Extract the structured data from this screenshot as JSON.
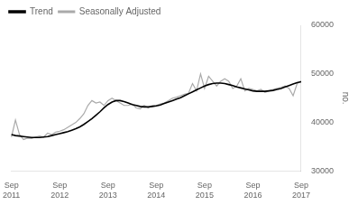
{
  "chart_data": {
    "type": "line",
    "ylabel": "no.",
    "categories": [
      "Sep\n2011",
      null,
      null,
      null,
      null,
      null,
      null,
      null,
      null,
      null,
      null,
      null,
      "Sep\n2012",
      null,
      null,
      null,
      null,
      null,
      null,
      null,
      null,
      null,
      null,
      null,
      "Sep\n2013",
      null,
      null,
      null,
      null,
      null,
      null,
      null,
      null,
      null,
      null,
      null,
      "Sep\n2014",
      null,
      null,
      null,
      null,
      null,
      null,
      null,
      null,
      null,
      null,
      null,
      "Sep\n2015",
      null,
      null,
      null,
      null,
      null,
      null,
      null,
      null,
      null,
      null,
      null,
      "Sep\n2016",
      null,
      null,
      null,
      null,
      null,
      null,
      null,
      null,
      null,
      null,
      null,
      "Sep\n2017"
    ],
    "series": [
      {
        "name": "Trend",
        "color": "#000000",
        "values": [
          37500,
          37300,
          37200,
          37100,
          37000,
          36900,
          36900,
          36900,
          37000,
          37100,
          37300,
          37500,
          37700,
          37900,
          38100,
          38400,
          38700,
          39100,
          39600,
          40200,
          40800,
          41500,
          42200,
          43000,
          43700,
          44200,
          44500,
          44500,
          44300,
          44000,
          43700,
          43500,
          43300,
          43200,
          43200,
          43300,
          43400,
          43600,
          43900,
          44200,
          44500,
          44800,
          45100,
          45500,
          45900,
          46300,
          46700,
          47100,
          47500,
          47800,
          48000,
          48100,
          48100,
          48000,
          47800,
          47600,
          47300,
          47100,
          46900,
          46700,
          46500,
          46400,
          46400,
          46400,
          46500,
          46600,
          46800,
          47000,
          47300,
          47600,
          47900,
          48200,
          48400
        ]
      },
      {
        "name": "Seasonally Adjusted",
        "color": "#aaaaaa",
        "values": [
          37000,
          40500,
          37500,
          36500,
          36800,
          36700,
          37000,
          37200,
          37000,
          37800,
          37500,
          38000,
          38200,
          38500,
          39000,
          39500,
          40000,
          40800,
          41800,
          43500,
          44500,
          44000,
          44200,
          43500,
          44500,
          45000,
          44500,
          44000,
          43500,
          43500,
          43800,
          43000,
          42800,
          43500,
          43000,
          43500,
          43500,
          43800,
          44000,
          44500,
          45000,
          45200,
          45500,
          45800,
          46000,
          48000,
          46500,
          50000,
          47000,
          49500,
          48500,
          47500,
          48500,
          49000,
          48500,
          47000,
          47500,
          49000,
          46500,
          47000,
          46800,
          46500,
          46800,
          46200,
          46500,
          46800,
          47000,
          47200,
          47500,
          47000,
          45500,
          48000,
          48500
        ]
      }
    ],
    "ylim": [
      30000,
      60000
    ],
    "yticks": [
      30000,
      40000,
      50000,
      60000
    ],
    "grid": false,
    "legend": "upper left"
  }
}
